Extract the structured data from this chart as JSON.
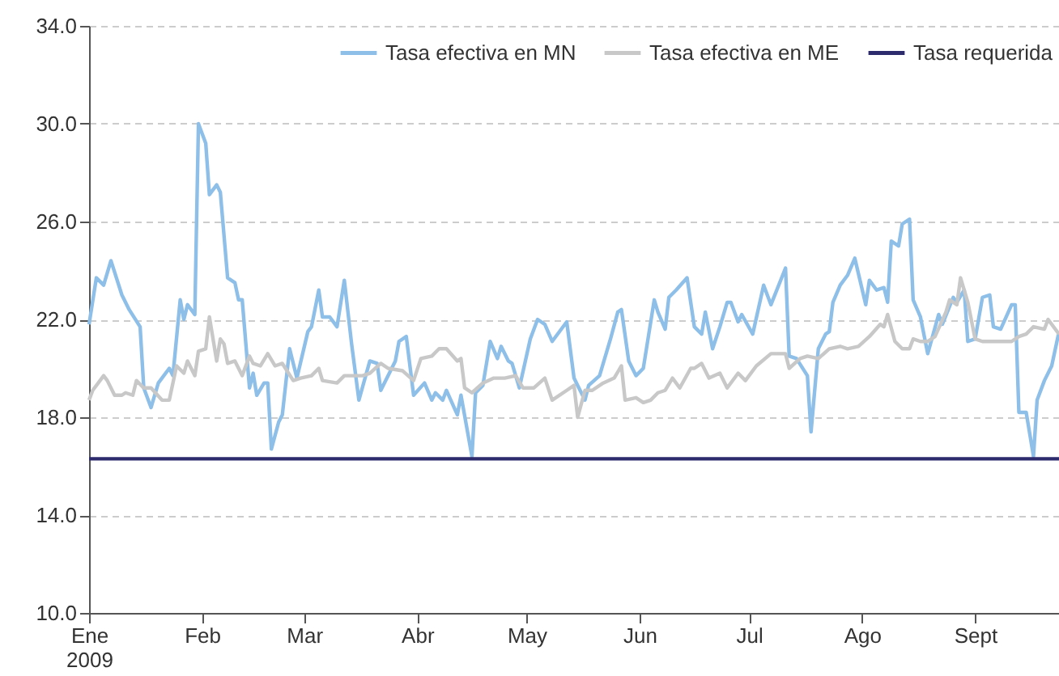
{
  "chart_data": {
    "type": "line",
    "xlim": [
      "2009-01-01",
      "2009-09-24"
    ],
    "xticks": [
      {
        "value": "2009-01-01",
        "label": "Ene\n2009"
      },
      {
        "value": "2009-02-01",
        "label": "Feb"
      },
      {
        "value": "2009-03-01",
        "label": "Mar"
      },
      {
        "value": "2009-04-01",
        "label": "Abr"
      },
      {
        "value": "2009-05-01",
        "label": "May"
      },
      {
        "value": "2009-06-01",
        "label": "Jun"
      },
      {
        "value": "2009-07-01",
        "label": "Jul"
      },
      {
        "value": "2009-08-01",
        "label": "Ago"
      },
      {
        "value": "2009-09-01",
        "label": "Sept"
      }
    ],
    "ylim": [
      10,
      34
    ],
    "yticks": [
      {
        "value": 10,
        "label": "10.0"
      },
      {
        "value": 14,
        "label": "14.0"
      },
      {
        "value": 18,
        "label": "18.0"
      },
      {
        "value": 22,
        "label": "22.0"
      },
      {
        "value": 26,
        "label": "26.0"
      },
      {
        "value": 30,
        "label": "30.0"
      },
      {
        "value": 34,
        "label": "34.0"
      }
    ],
    "grid": "y",
    "legend": "top right",
    "line_style": "solid",
    "marker": "none",
    "series": [
      {
        "name": "Tasa efectiva en MN",
        "color": "#8dbfe8",
        "x": [
          "2009-01-01",
          "2009-01-03",
          "2009-01-05",
          "2009-01-07",
          "2009-01-10",
          "2009-01-12",
          "2009-01-15",
          "2009-01-16",
          "2009-01-18",
          "2009-01-20",
          "2009-01-23",
          "2009-01-24",
          "2009-01-26",
          "2009-01-27",
          "2009-01-28",
          "2009-01-30",
          "2009-01-31",
          "2009-02-02",
          "2009-02-03",
          "2009-02-05",
          "2009-02-06",
          "2009-02-08",
          "2009-02-10",
          "2009-02-11",
          "2009-02-12",
          "2009-02-14",
          "2009-02-15",
          "2009-02-16",
          "2009-02-18",
          "2009-02-19",
          "2009-02-20",
          "2009-02-22",
          "2009-02-23",
          "2009-02-25",
          "2009-02-27",
          "2009-03-02",
          "2009-03-03",
          "2009-03-05",
          "2009-03-06",
          "2009-03-08",
          "2009-03-10",
          "2009-03-12",
          "2009-03-14",
          "2009-03-16",
          "2009-03-19",
          "2009-03-21",
          "2009-03-22",
          "2009-03-26",
          "2009-03-27",
          "2009-03-29",
          "2009-03-31",
          "2009-04-03",
          "2009-04-05",
          "2009-04-06",
          "2009-04-08",
          "2009-04-09",
          "2009-04-12",
          "2009-04-13",
          "2009-04-16",
          "2009-04-17",
          "2009-04-19",
          "2009-04-21",
          "2009-04-23",
          "2009-04-24",
          "2009-04-26",
          "2009-04-27",
          "2009-04-29",
          "2009-05-02",
          "2009-05-04",
          "2009-05-06",
          "2009-05-08",
          "2009-05-12",
          "2009-05-14",
          "2009-05-15",
          "2009-05-17",
          "2009-05-18",
          "2009-05-21",
          "2009-05-24",
          "2009-05-26",
          "2009-05-27",
          "2009-05-29",
          "2009-05-31",
          "2009-06-02",
          "2009-06-05",
          "2009-06-06",
          "2009-06-08",
          "2009-06-09",
          "2009-06-11",
          "2009-06-14",
          "2009-06-16",
          "2009-06-18",
          "2009-06-19",
          "2009-06-21",
          "2009-06-23",
          "2009-06-25",
          "2009-06-26",
          "2009-06-28",
          "2009-06-29",
          "2009-07-02",
          "2009-07-05",
          "2009-07-07",
          "2009-07-11",
          "2009-07-12",
          "2009-07-14",
          "2009-07-17",
          "2009-07-18",
          "2009-07-20",
          "2009-07-22",
          "2009-07-23",
          "2009-07-24",
          "2009-07-26",
          "2009-07-28",
          "2009-07-30",
          "2009-08-02",
          "2009-08-03",
          "2009-08-05",
          "2009-08-07",
          "2009-08-08",
          "2009-08-09",
          "2009-08-11",
          "2009-08-12",
          "2009-08-14",
          "2009-08-15",
          "2009-08-17",
          "2009-08-19",
          "2009-08-22",
          "2009-08-23",
          "2009-08-26",
          "2009-08-27",
          "2009-08-29",
          "2009-08-30",
          "2009-09-01",
          "2009-09-03",
          "2009-09-05",
          "2009-09-06",
          "2009-09-08",
          "2009-09-11",
          "2009-09-12",
          "2009-09-13",
          "2009-09-15",
          "2009-09-17",
          "2009-09-18",
          "2009-09-20",
          "2009-09-22",
          "2009-09-24"
        ],
        "values": [
          21.8,
          23.7,
          23.4,
          24.4,
          23.0,
          22.4,
          21.7,
          19.2,
          18.4,
          19.4,
          20.0,
          19.7,
          22.8,
          22.0,
          22.6,
          22.2,
          30.0,
          29.2,
          27.1,
          27.5,
          27.2,
          23.7,
          23.5,
          22.8,
          22.8,
          19.2,
          19.8,
          18.9,
          19.4,
          19.4,
          16.7,
          17.8,
          18.1,
          20.8,
          19.6,
          21.5,
          21.7,
          23.2,
          22.1,
          22.1,
          21.7,
          23.6,
          21.0,
          18.7,
          20.3,
          20.2,
          19.1,
          20.3,
          21.1,
          21.3,
          18.9,
          19.4,
          18.7,
          19.0,
          18.7,
          19.1,
          18.1,
          18.9,
          16.4,
          19.0,
          19.3,
          21.1,
          20.4,
          20.9,
          20.3,
          20.2,
          19.2,
          21.2,
          22.0,
          21.8,
          21.1,
          21.9,
          19.6,
          19.3,
          18.7,
          19.3,
          19.7,
          21.2,
          22.3,
          22.4,
          20.3,
          19.7,
          20.0,
          22.8,
          22.3,
          21.6,
          22.9,
          23.2,
          23.7,
          21.7,
          21.4,
          22.3,
          20.8,
          21.7,
          22.7,
          22.7,
          21.9,
          22.2,
          21.4,
          23.4,
          22.6,
          24.1,
          20.5,
          20.4,
          19.7,
          17.4,
          20.8,
          21.4,
          21.5,
          22.7,
          23.4,
          23.8,
          24.5,
          22.6,
          23.6,
          23.2,
          23.3,
          22.7,
          25.2,
          25.0,
          25.9,
          26.1,
          22.8,
          22.1,
          20.6,
          22.2,
          21.8,
          22.9,
          22.7,
          23.2,
          21.1,
          21.2,
          22.9,
          23.0,
          21.7,
          21.6,
          22.6,
          22.6,
          18.2,
          18.2,
          16.4,
          18.7,
          19.5,
          20.1,
          21.5
        ]
      },
      {
        "name": "Tasa efectiva en ME",
        "color": "#c8c8c8",
        "x": [
          "2009-01-01",
          "2009-01-02",
          "2009-01-05",
          "2009-01-06",
          "2009-01-08",
          "2009-01-10",
          "2009-01-11",
          "2009-01-13",
          "2009-01-14",
          "2009-01-16",
          "2009-01-18",
          "2009-01-21",
          "2009-01-23",
          "2009-01-25",
          "2009-01-27",
          "2009-01-28",
          "2009-01-30",
          "2009-01-31",
          "2009-02-02",
          "2009-02-03",
          "2009-02-05",
          "2009-02-06",
          "2009-02-07",
          "2009-02-08",
          "2009-02-10",
          "2009-02-12",
          "2009-02-14",
          "2009-02-15",
          "2009-02-17",
          "2009-02-19",
          "2009-02-21",
          "2009-02-23",
          "2009-02-26",
          "2009-02-28",
          "2009-03-03",
          "2009-03-05",
          "2009-03-06",
          "2009-03-10",
          "2009-03-12",
          "2009-03-14",
          "2009-03-17",
          "2009-03-19",
          "2009-03-22",
          "2009-03-24",
          "2009-03-28",
          "2009-03-31",
          "2009-04-02",
          "2009-04-05",
          "2009-04-07",
          "2009-04-09",
          "2009-04-12",
          "2009-04-13",
          "2009-04-14",
          "2009-04-16",
          "2009-04-19",
          "2009-04-22",
          "2009-04-25",
          "2009-04-28",
          "2009-04-30",
          "2009-05-03",
          "2009-05-06",
          "2009-05-08",
          "2009-05-12",
          "2009-05-14",
          "2009-05-15",
          "2009-05-17",
          "2009-05-19",
          "2009-05-22",
          "2009-05-25",
          "2009-05-27",
          "2009-05-28",
          "2009-05-31",
          "2009-06-02",
          "2009-06-04",
          "2009-06-06",
          "2009-06-08",
          "2009-06-10",
          "2009-06-12",
          "2009-06-15",
          "2009-06-16",
          "2009-06-18",
          "2009-06-20",
          "2009-06-23",
          "2009-06-25",
          "2009-06-28",
          "2009-06-30",
          "2009-07-03",
          "2009-07-07",
          "2009-07-09",
          "2009-07-11",
          "2009-07-12",
          "2009-07-15",
          "2009-07-17",
          "2009-07-20",
          "2009-07-23",
          "2009-07-26",
          "2009-07-28",
          "2009-07-31",
          "2009-08-03",
          "2009-08-06",
          "2009-08-07",
          "2009-08-08",
          "2009-08-10",
          "2009-08-12",
          "2009-08-14",
          "2009-08-15",
          "2009-08-17",
          "2009-08-19",
          "2009-08-21",
          "2009-08-24",
          "2009-08-25",
          "2009-08-27",
          "2009-08-28",
          "2009-08-30",
          "2009-09-01",
          "2009-09-03",
          "2009-09-06",
          "2009-09-09",
          "2009-09-11",
          "2009-09-13",
          "2009-09-15",
          "2009-09-17",
          "2009-09-20",
          "2009-09-21",
          "2009-09-24"
        ],
        "values": [
          18.7,
          19.1,
          19.7,
          19.5,
          18.9,
          18.9,
          19.0,
          18.9,
          19.5,
          19.2,
          19.2,
          18.7,
          18.7,
          20.1,
          19.8,
          20.3,
          19.7,
          20.7,
          20.8,
          22.1,
          20.3,
          21.2,
          21.0,
          20.2,
          20.3,
          19.7,
          20.5,
          20.2,
          20.1,
          20.6,
          20.1,
          20.2,
          19.5,
          19.6,
          19.7,
          20.0,
          19.5,
          19.4,
          19.7,
          19.7,
          19.7,
          19.8,
          20.2,
          20.0,
          19.9,
          19.5,
          20.4,
          20.5,
          20.8,
          20.8,
          20.3,
          20.4,
          19.2,
          19.0,
          19.4,
          19.6,
          19.6,
          19.7,
          19.2,
          19.2,
          19.6,
          18.7,
          19.1,
          19.3,
          18.0,
          19.1,
          19.1,
          19.4,
          19.6,
          20.1,
          18.7,
          18.8,
          18.6,
          18.7,
          19.0,
          19.1,
          19.6,
          19.2,
          20.0,
          20.0,
          20.2,
          19.6,
          19.8,
          19.2,
          19.8,
          19.5,
          20.1,
          20.6,
          20.6,
          20.6,
          20.0,
          20.4,
          20.5,
          20.4,
          20.8,
          20.9,
          20.8,
          20.9,
          21.3,
          21.8,
          21.7,
          22.2,
          21.1,
          20.8,
          20.8,
          21.2,
          21.1,
          21.1,
          21.3,
          22.3,
          22.8,
          22.6,
          23.7,
          22.7,
          21.2,
          21.1,
          21.1,
          21.1,
          21.1,
          21.3,
          21.4,
          21.7,
          21.6,
          22.0,
          21.4
        ]
      }
    ],
    "ref_lines": [
      {
        "axis": "y",
        "value": 16.3,
        "label": "Tasa requerida",
        "color": "#2e2a6e",
        "line_style": "solid"
      }
    ]
  }
}
